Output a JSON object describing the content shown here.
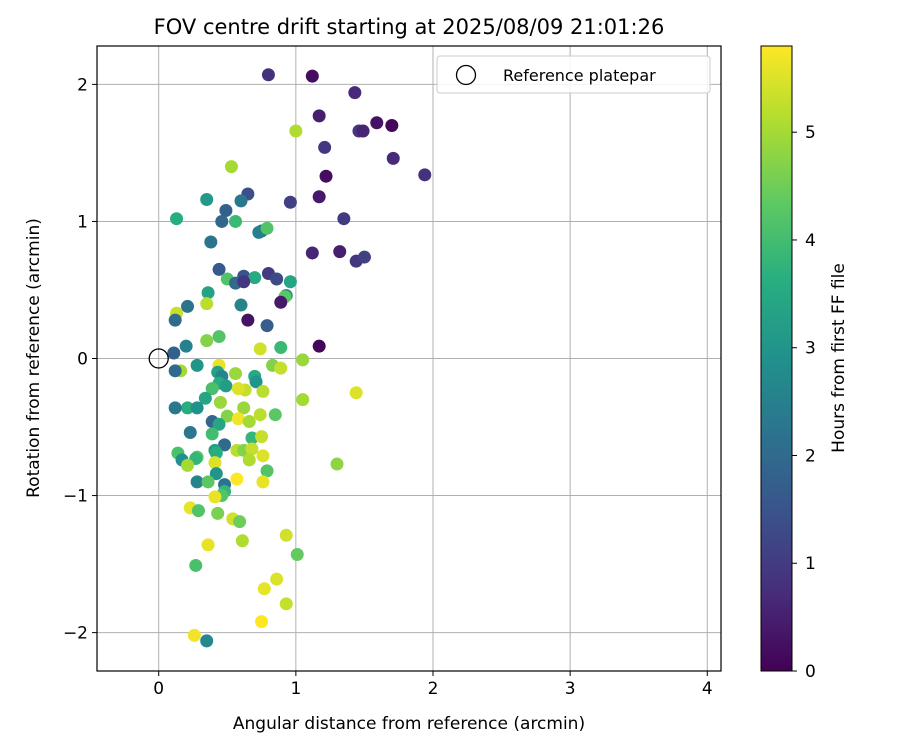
{
  "chart_data": {
    "type": "scatter",
    "title": "FOV centre drift starting at 2025/08/09 21:01:26",
    "xlabel": "Angular distance from reference (arcmin)",
    "ylabel": "Rotation from reference (arcmin)",
    "xlim": [
      -0.45,
      4.1
    ],
    "ylim": [
      -2.28,
      2.28
    ],
    "xticks": [
      0,
      1,
      2,
      3,
      4
    ],
    "yticks": [
      -2,
      -1,
      0,
      1,
      2
    ],
    "grid": true,
    "legend": {
      "placement": "top-right",
      "entries": [
        "Reference platepar"
      ]
    },
    "reference_point": {
      "x": 0,
      "y": 0,
      "marker": "open-circle"
    },
    "colorbar": {
      "label": "Hours from first FF file",
      "colormap": "viridis",
      "range": [
        0,
        5.8
      ],
      "ticks": [
        0,
        1,
        2,
        3,
        4,
        5
      ]
    },
    "points": [
      {
        "x": 0.8,
        "y": 2.07,
        "h": 0.8
      },
      {
        "x": 1.12,
        "y": 2.06,
        "h": 0.2
      },
      {
        "x": 1.43,
        "y": 1.94,
        "h": 0.7
      },
      {
        "x": 1.17,
        "y": 1.77,
        "h": 0.5
      },
      {
        "x": 1.59,
        "y": 1.72,
        "h": 0.3
      },
      {
        "x": 1.7,
        "y": 1.7,
        "h": 0.1
      },
      {
        "x": 1.46,
        "y": 1.66,
        "h": 0.9
      },
      {
        "x": 1.49,
        "y": 1.66,
        "h": 0.6
      },
      {
        "x": 1.0,
        "y": 1.66,
        "h": 5.1
      },
      {
        "x": 1.21,
        "y": 1.54,
        "h": 0.9
      },
      {
        "x": 1.71,
        "y": 1.46,
        "h": 0.7
      },
      {
        "x": 0.53,
        "y": 1.4,
        "h": 5.0
      },
      {
        "x": 1.22,
        "y": 1.33,
        "h": 0.2
      },
      {
        "x": 1.94,
        "y": 1.34,
        "h": 0.8
      },
      {
        "x": 0.65,
        "y": 1.2,
        "h": 1.4
      },
      {
        "x": 0.35,
        "y": 1.16,
        "h": 3.1
      },
      {
        "x": 0.6,
        "y": 1.15,
        "h": 2.3
      },
      {
        "x": 0.96,
        "y": 1.14,
        "h": 1.1
      },
      {
        "x": 1.17,
        "y": 1.18,
        "h": 0.4
      },
      {
        "x": 0.49,
        "y": 1.08,
        "h": 1.8
      },
      {
        "x": 0.13,
        "y": 1.02,
        "h": 3.6
      },
      {
        "x": 0.46,
        "y": 1.0,
        "h": 1.9
      },
      {
        "x": 0.56,
        "y": 1.0,
        "h": 3.9
      },
      {
        "x": 1.35,
        "y": 1.02,
        "h": 1.0
      },
      {
        "x": 0.75,
        "y": 0.93,
        "h": 2.1
      },
      {
        "x": 0.73,
        "y": 0.92,
        "h": 2.5
      },
      {
        "x": 0.79,
        "y": 0.95,
        "h": 4.2
      },
      {
        "x": 0.38,
        "y": 0.85,
        "h": 2.2
      },
      {
        "x": 1.12,
        "y": 0.77,
        "h": 0.6
      },
      {
        "x": 1.32,
        "y": 0.78,
        "h": 0.5
      },
      {
        "x": 1.44,
        "y": 0.71,
        "h": 0.9
      },
      {
        "x": 1.5,
        "y": 0.74,
        "h": 1.1
      },
      {
        "x": 0.44,
        "y": 0.65,
        "h": 1.6
      },
      {
        "x": 0.8,
        "y": 0.62,
        "h": 1.0
      },
      {
        "x": 0.62,
        "y": 0.6,
        "h": 1.5
      },
      {
        "x": 0.5,
        "y": 0.58,
        "h": 4.2
      },
      {
        "x": 0.7,
        "y": 0.59,
        "h": 3.5
      },
      {
        "x": 0.86,
        "y": 0.58,
        "h": 1.3
      },
      {
        "x": 0.96,
        "y": 0.56,
        "h": 3.4
      },
      {
        "x": 0.56,
        "y": 0.55,
        "h": 2.0
      },
      {
        "x": 0.62,
        "y": 0.56,
        "h": 0.9
      },
      {
        "x": 0.36,
        "y": 0.48,
        "h": 3.3
      },
      {
        "x": 0.93,
        "y": 0.46,
        "h": 3.0
      },
      {
        "x": 0.92,
        "y": 0.45,
        "h": 4.3
      },
      {
        "x": 0.89,
        "y": 0.41,
        "h": 0.4
      },
      {
        "x": 0.35,
        "y": 0.4,
        "h": 5.2
      },
      {
        "x": 0.6,
        "y": 0.39,
        "h": 2.6
      },
      {
        "x": 0.21,
        "y": 0.38,
        "h": 2.2
      },
      {
        "x": 0.13,
        "y": 0.33,
        "h": 5.3
      },
      {
        "x": 0.12,
        "y": 0.28,
        "h": 2.0
      },
      {
        "x": 0.65,
        "y": 0.28,
        "h": 0.3
      },
      {
        "x": 0.79,
        "y": 0.24,
        "h": 1.7
      },
      {
        "x": 0.44,
        "y": 0.16,
        "h": 4.2
      },
      {
        "x": 0.35,
        "y": 0.13,
        "h": 4.7
      },
      {
        "x": 0.2,
        "y": 0.09,
        "h": 2.5
      },
      {
        "x": 1.17,
        "y": 0.09,
        "h": 0.1
      },
      {
        "x": 0.89,
        "y": 0.08,
        "h": 3.9
      },
      {
        "x": 0.74,
        "y": 0.07,
        "h": 5.4
      },
      {
        "x": 0.11,
        "y": 0.04,
        "h": 1.8
      },
      {
        "x": 0.28,
        "y": -0.05,
        "h": 3.0
      },
      {
        "x": 1.05,
        "y": -0.01,
        "h": 4.9
      },
      {
        "x": 0.44,
        "y": -0.05,
        "h": 5.6
      },
      {
        "x": 0.83,
        "y": -0.05,
        "h": 4.7
      },
      {
        "x": 0.89,
        "y": -0.07,
        "h": 5.3
      },
      {
        "x": 0.16,
        "y": -0.09,
        "h": 5.0
      },
      {
        "x": 0.12,
        "y": -0.09,
        "h": 2.0
      },
      {
        "x": 0.43,
        "y": -0.1,
        "h": 3.3
      },
      {
        "x": 0.46,
        "y": -0.13,
        "h": 2.6
      },
      {
        "x": 0.56,
        "y": -0.11,
        "h": 4.9
      },
      {
        "x": 0.7,
        "y": -0.13,
        "h": 3.5
      },
      {
        "x": 0.71,
        "y": -0.17,
        "h": 3.0
      },
      {
        "x": 0.44,
        "y": -0.18,
        "h": 3.6
      },
      {
        "x": 0.49,
        "y": -0.2,
        "h": 3.2
      },
      {
        "x": 0.39,
        "y": -0.22,
        "h": 4.1
      },
      {
        "x": 0.63,
        "y": -0.23,
        "h": 5.3
      },
      {
        "x": 0.58,
        "y": -0.22,
        "h": 5.5
      },
      {
        "x": 0.76,
        "y": -0.24,
        "h": 5.2
      },
      {
        "x": 1.44,
        "y": -0.25,
        "h": 5.5
      },
      {
        "x": 0.34,
        "y": -0.29,
        "h": 3.4
      },
      {
        "x": 0.45,
        "y": -0.32,
        "h": 4.9
      },
      {
        "x": 1.05,
        "y": -0.3,
        "h": 5.0
      },
      {
        "x": 0.21,
        "y": -0.36,
        "h": 3.6
      },
      {
        "x": 0.12,
        "y": -0.36,
        "h": 2.3
      },
      {
        "x": 0.28,
        "y": -0.36,
        "h": 2.9
      },
      {
        "x": 0.62,
        "y": -0.36,
        "h": 4.9
      },
      {
        "x": 0.5,
        "y": -0.42,
        "h": 4.7
      },
      {
        "x": 0.74,
        "y": -0.41,
        "h": 5.2
      },
      {
        "x": 0.85,
        "y": -0.41,
        "h": 4.3
      },
      {
        "x": 0.39,
        "y": -0.46,
        "h": 1.9
      },
      {
        "x": 0.58,
        "y": -0.44,
        "h": 5.7
      },
      {
        "x": 0.66,
        "y": -0.46,
        "h": 5.0
      },
      {
        "x": 0.44,
        "y": -0.48,
        "h": 3.4
      },
      {
        "x": 0.23,
        "y": -0.54,
        "h": 2.3
      },
      {
        "x": 0.39,
        "y": -0.55,
        "h": 4.0
      },
      {
        "x": 0.68,
        "y": -0.58,
        "h": 3.8
      },
      {
        "x": 0.75,
        "y": -0.57,
        "h": 5.3
      },
      {
        "x": 0.48,
        "y": -0.63,
        "h": 2.0
      },
      {
        "x": 0.41,
        "y": -0.67,
        "h": 3.2
      },
      {
        "x": 0.57,
        "y": -0.67,
        "h": 5.2
      },
      {
        "x": 0.62,
        "y": -0.67,
        "h": 4.7
      },
      {
        "x": 0.14,
        "y": -0.69,
        "h": 4.1
      },
      {
        "x": 0.68,
        "y": -0.66,
        "h": 5.3
      },
      {
        "x": 0.42,
        "y": -0.69,
        "h": 3.6
      },
      {
        "x": 0.28,
        "y": -0.72,
        "h": 4.3
      },
      {
        "x": 0.27,
        "y": -0.73,
        "h": 3.8
      },
      {
        "x": 0.17,
        "y": -0.74,
        "h": 2.9
      },
      {
        "x": 0.76,
        "y": -0.71,
        "h": 5.5
      },
      {
        "x": 0.66,
        "y": -0.74,
        "h": 5.1
      },
      {
        "x": 0.21,
        "y": -0.78,
        "h": 5.0
      },
      {
        "x": 0.41,
        "y": -0.76,
        "h": 5.5
      },
      {
        "x": 1.3,
        "y": -0.77,
        "h": 4.8
      },
      {
        "x": 0.79,
        "y": -0.82,
        "h": 4.2
      },
      {
        "x": 0.42,
        "y": -0.84,
        "h": 3.0
      },
      {
        "x": 0.28,
        "y": -0.9,
        "h": 2.6
      },
      {
        "x": 0.36,
        "y": -0.9,
        "h": 4.3
      },
      {
        "x": 0.76,
        "y": -0.9,
        "h": 5.6
      },
      {
        "x": 0.48,
        "y": -0.92,
        "h": 2.2
      },
      {
        "x": 0.57,
        "y": -0.88,
        "h": 5.8
      },
      {
        "x": 0.48,
        "y": -0.97,
        "h": 3.8
      },
      {
        "x": 0.46,
        "y": -1.0,
        "h": 4.2
      },
      {
        "x": 0.41,
        "y": -1.01,
        "h": 5.6
      },
      {
        "x": 0.23,
        "y": -1.09,
        "h": 5.6
      },
      {
        "x": 0.29,
        "y": -1.11,
        "h": 4.2
      },
      {
        "x": 0.43,
        "y": -1.13,
        "h": 4.6
      },
      {
        "x": 0.54,
        "y": -1.17,
        "h": 5.4
      },
      {
        "x": 0.59,
        "y": -1.19,
        "h": 4.5
      },
      {
        "x": 0.93,
        "y": -1.29,
        "h": 5.4
      },
      {
        "x": 0.61,
        "y": -1.33,
        "h": 5.1
      },
      {
        "x": 0.36,
        "y": -1.36,
        "h": 5.6
      },
      {
        "x": 1.01,
        "y": -1.43,
        "h": 4.4
      },
      {
        "x": 0.27,
        "y": -1.51,
        "h": 4.1
      },
      {
        "x": 0.86,
        "y": -1.61,
        "h": 5.5
      },
      {
        "x": 0.77,
        "y": -1.68,
        "h": 5.6
      },
      {
        "x": 0.93,
        "y": -1.79,
        "h": 5.3
      },
      {
        "x": 0.75,
        "y": -1.92,
        "h": 5.8
      },
      {
        "x": 0.26,
        "y": -2.02,
        "h": 5.7
      },
      {
        "x": 0.35,
        "y": -2.06,
        "h": 2.7
      }
    ]
  }
}
